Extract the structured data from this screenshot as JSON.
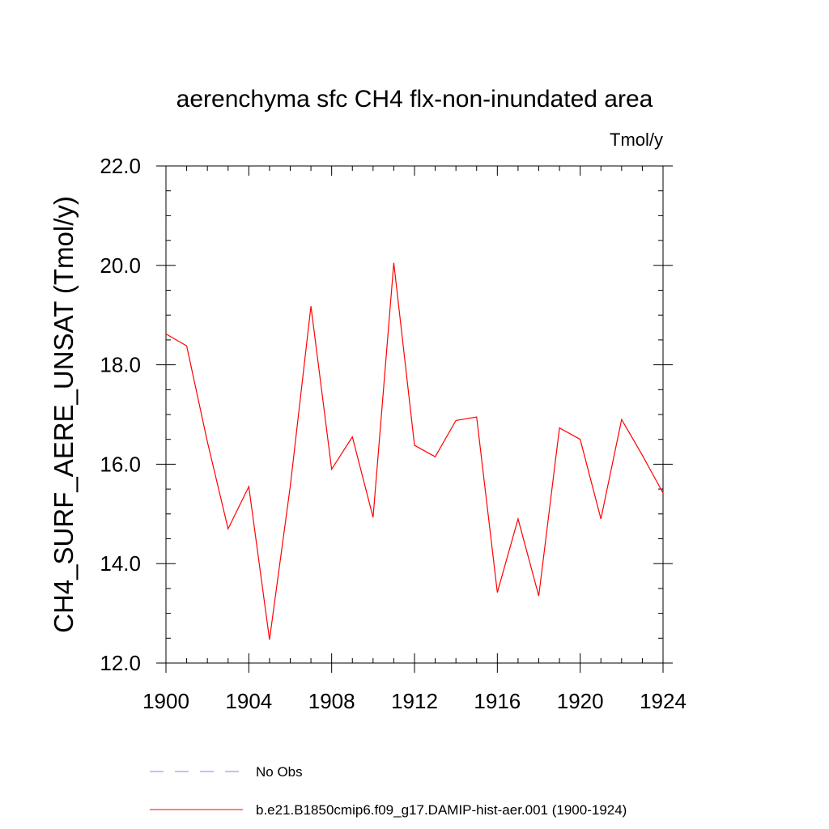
{
  "chart_data": {
    "type": "line",
    "title": "aerenchyma sfc CH4 flx-non-inundated area",
    "units_label": "Tmol/y",
    "ylabel": "CH4_SURF_AERE_UNSAT  (Tmol/y)",
    "xlabel": "",
    "xlim": [
      1900,
      1924
    ],
    "ylim": [
      12.0,
      22.0
    ],
    "x_ticks": [
      1900,
      1904,
      1908,
      1912,
      1916,
      1920,
      1924
    ],
    "y_ticks": [
      12.0,
      14.0,
      16.0,
      18.0,
      20.0,
      22.0
    ],
    "x_tick_labels": [
      "1900",
      "1904",
      "1908",
      "1912",
      "1916",
      "1920",
      "1924"
    ],
    "y_tick_labels": [
      "12.0",
      "14.0",
      "16.0",
      "18.0",
      "20.0",
      "22.0"
    ],
    "x": [
      1900,
      1901,
      1902,
      1903,
      1904,
      1905,
      1906,
      1907,
      1908,
      1909,
      1910,
      1911,
      1912,
      1913,
      1914,
      1915,
      1916,
      1917,
      1918,
      1919,
      1920,
      1921,
      1922,
      1923,
      1924
    ],
    "series": [
      {
        "name": "b.e21.B1850cmip6.f09_g17.DAMIP-hist-aer.001 (1900-1924)",
        "color": "#ff0000",
        "values": [
          18.62,
          18.38,
          16.45,
          14.7,
          15.55,
          12.47,
          15.55,
          19.18,
          15.9,
          16.55,
          14.93,
          20.05,
          16.38,
          16.15,
          16.88,
          16.95,
          13.42,
          14.9,
          13.35,
          16.73,
          16.5,
          14.9,
          16.9,
          16.18,
          15.42
        ]
      }
    ],
    "legend": {
      "placement": "bottom",
      "entries": [
        {
          "label": "No Obs",
          "color": "#8080ff",
          "style": "dashed"
        },
        {
          "label": "b.e21.B1850cmip6.f09_g17.DAMIP-hist-aer.001 (1900-1924)",
          "color": "#ff0000",
          "style": "solid"
        }
      ]
    },
    "grid": false
  }
}
